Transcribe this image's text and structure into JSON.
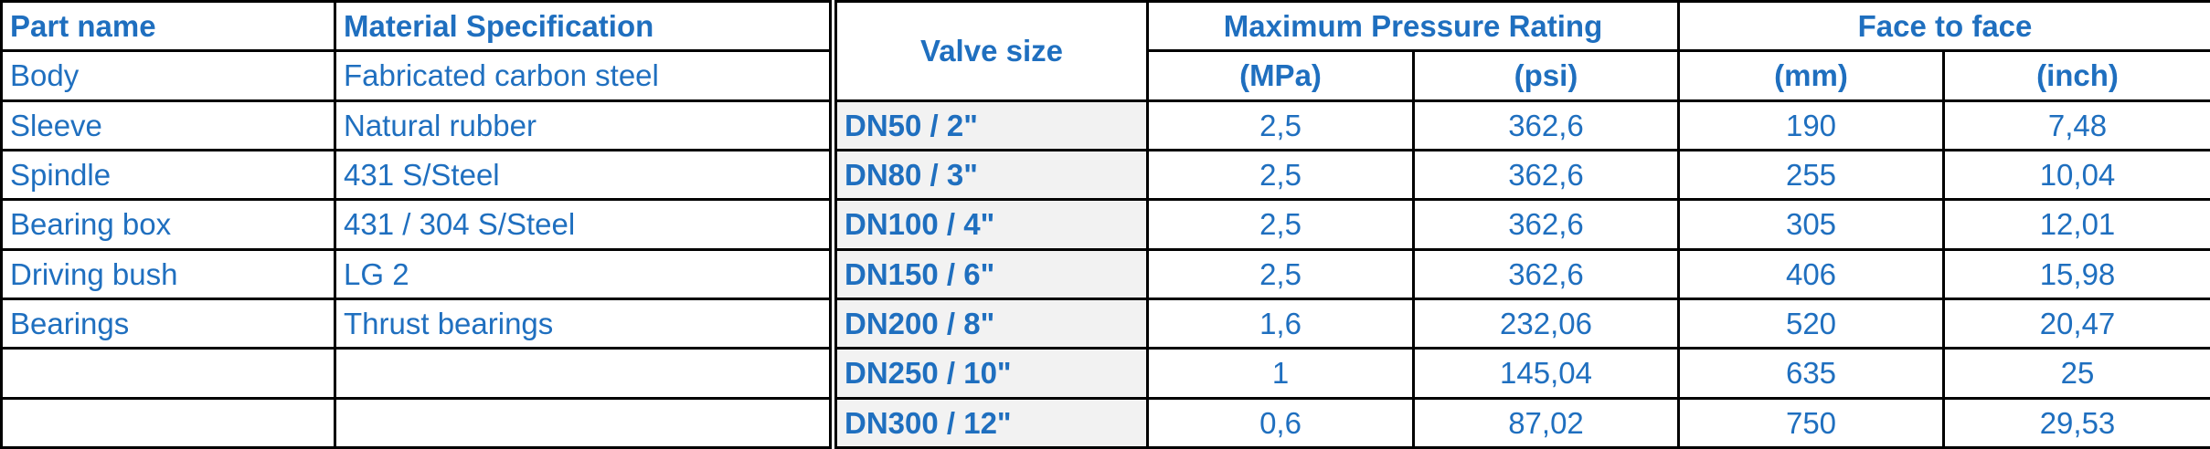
{
  "parts_table": {
    "headers": [
      "Part name",
      "Material Specification"
    ],
    "rows": [
      [
        "Body",
        "Fabricated carbon steel"
      ],
      [
        "Sleeve",
        "Natural rubber"
      ],
      [
        "Spindle",
        "431 S/Steel"
      ],
      [
        "Bearing box",
        "431 / 304 S/Steel"
      ],
      [
        "Driving bush",
        "LG 2"
      ],
      [
        "Bearings",
        "Thrust bearings"
      ]
    ]
  },
  "valve_table": {
    "headers": {
      "valve_size": "Valve size",
      "pressure": "Maximum Pressure Rating",
      "pressure_units": [
        "(MPa)",
        "(psi)"
      ],
      "face": "Face to face",
      "face_units": [
        "(mm)",
        "(inch)"
      ]
    },
    "rows": [
      [
        "DN50 / 2\"",
        "2,5",
        "362,6",
        "190",
        "7,48"
      ],
      [
        "DN80 / 3\"",
        "2,5",
        "362,6",
        "255",
        "10,04"
      ],
      [
        "DN100 / 4\"",
        "2,5",
        "362,6",
        "305",
        "12,01"
      ],
      [
        "DN150 / 6\"",
        "2,5",
        "362,6",
        "406",
        "15,98"
      ],
      [
        "DN200 / 8\"",
        "1,6",
        "232,06",
        "520",
        "20,47"
      ],
      [
        "DN250 / 10\"",
        "1",
        "145,04",
        "635",
        "25"
      ],
      [
        "DN300 / 12\"",
        "0,6",
        "87,02",
        "750",
        "29,53"
      ]
    ]
  }
}
